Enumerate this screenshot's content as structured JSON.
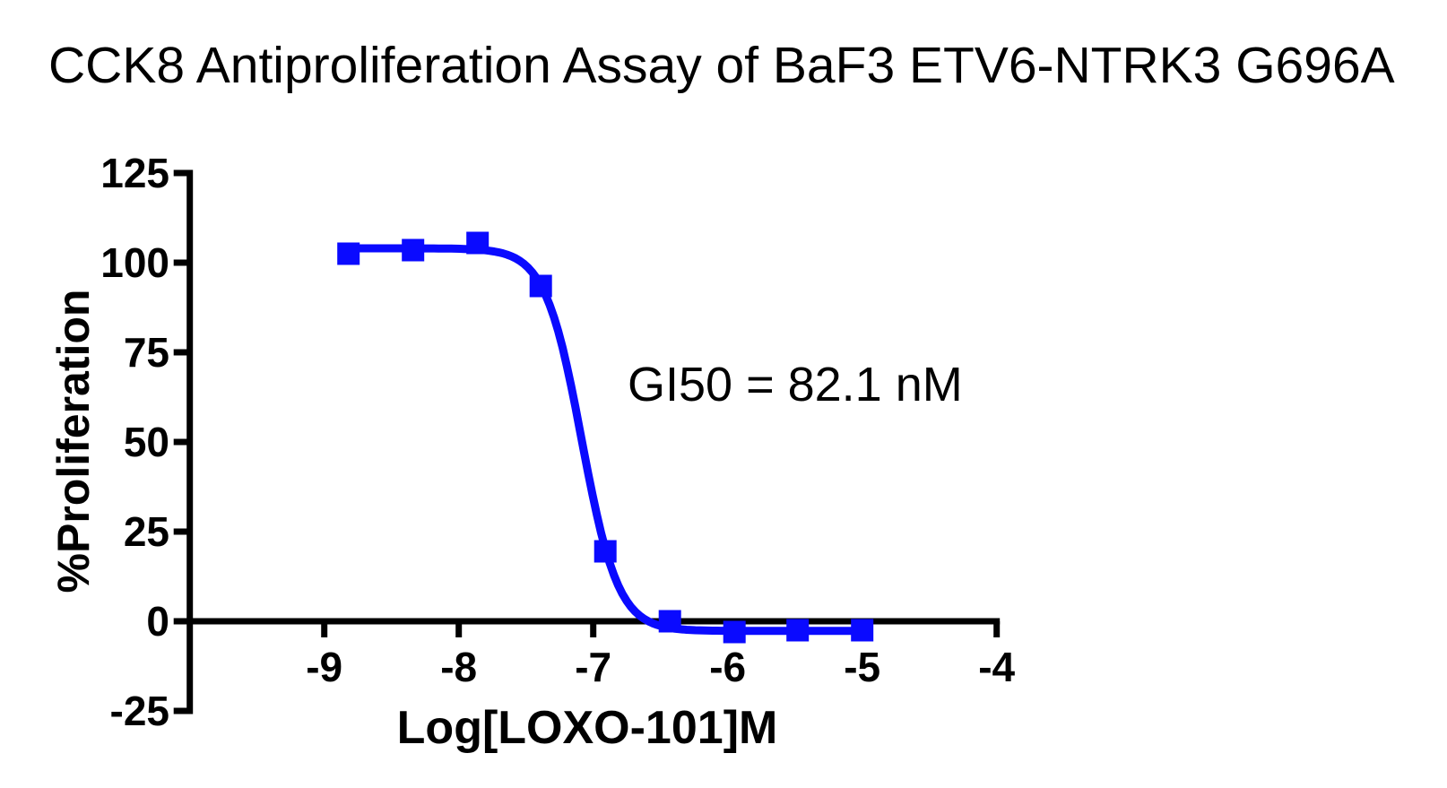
{
  "chart_data": {
    "type": "scatter",
    "title": "CCK8 Antiproliferation Assay of BaF3 ETV6-NTRK3 G696A",
    "xlabel": "Log[LOXO-101]M",
    "ylabel": "%Proliferation",
    "annotation": "GI50 = 82.1 nM",
    "gi50_nM": 82.1,
    "xlim": [
      -10,
      -4
    ],
    "ylim": [
      -25,
      125
    ],
    "x_ticks": [
      -9,
      -8,
      -7,
      -6,
      -5,
      -4
    ],
    "y_ticks": [
      125,
      100,
      75,
      50,
      25,
      0,
      -25
    ],
    "grid": false,
    "legend": "none",
    "series": [
      {
        "name": "BaF3 ETV6-NTRK3 G696A",
        "marker": "square",
        "color": "#0a0aff",
        "points": [
          [
            -8.82,
            102.5
          ],
          [
            -8.34,
            103.5
          ],
          [
            -7.86,
            105.5
          ],
          [
            -7.39,
            93.5
          ],
          [
            -6.91,
            19.5
          ],
          [
            -6.43,
            0
          ],
          [
            -5.95,
            -3
          ],
          [
            -5.48,
            -2.5
          ],
          [
            -5.0,
            -2.5
          ]
        ]
      }
    ],
    "fit_curve": {
      "model": "four-parameter logistic (dose-response inhibition)",
      "top": 104,
      "bottom": -2.7,
      "log_gi50": -7.086,
      "hill_slope": 3.2,
      "x_start": -8.82,
      "x_end": -5.0
    }
  },
  "colors": {
    "curve": "#0a0aff",
    "axis": "#000000",
    "text": "#000000",
    "background": "#ffffff"
  }
}
